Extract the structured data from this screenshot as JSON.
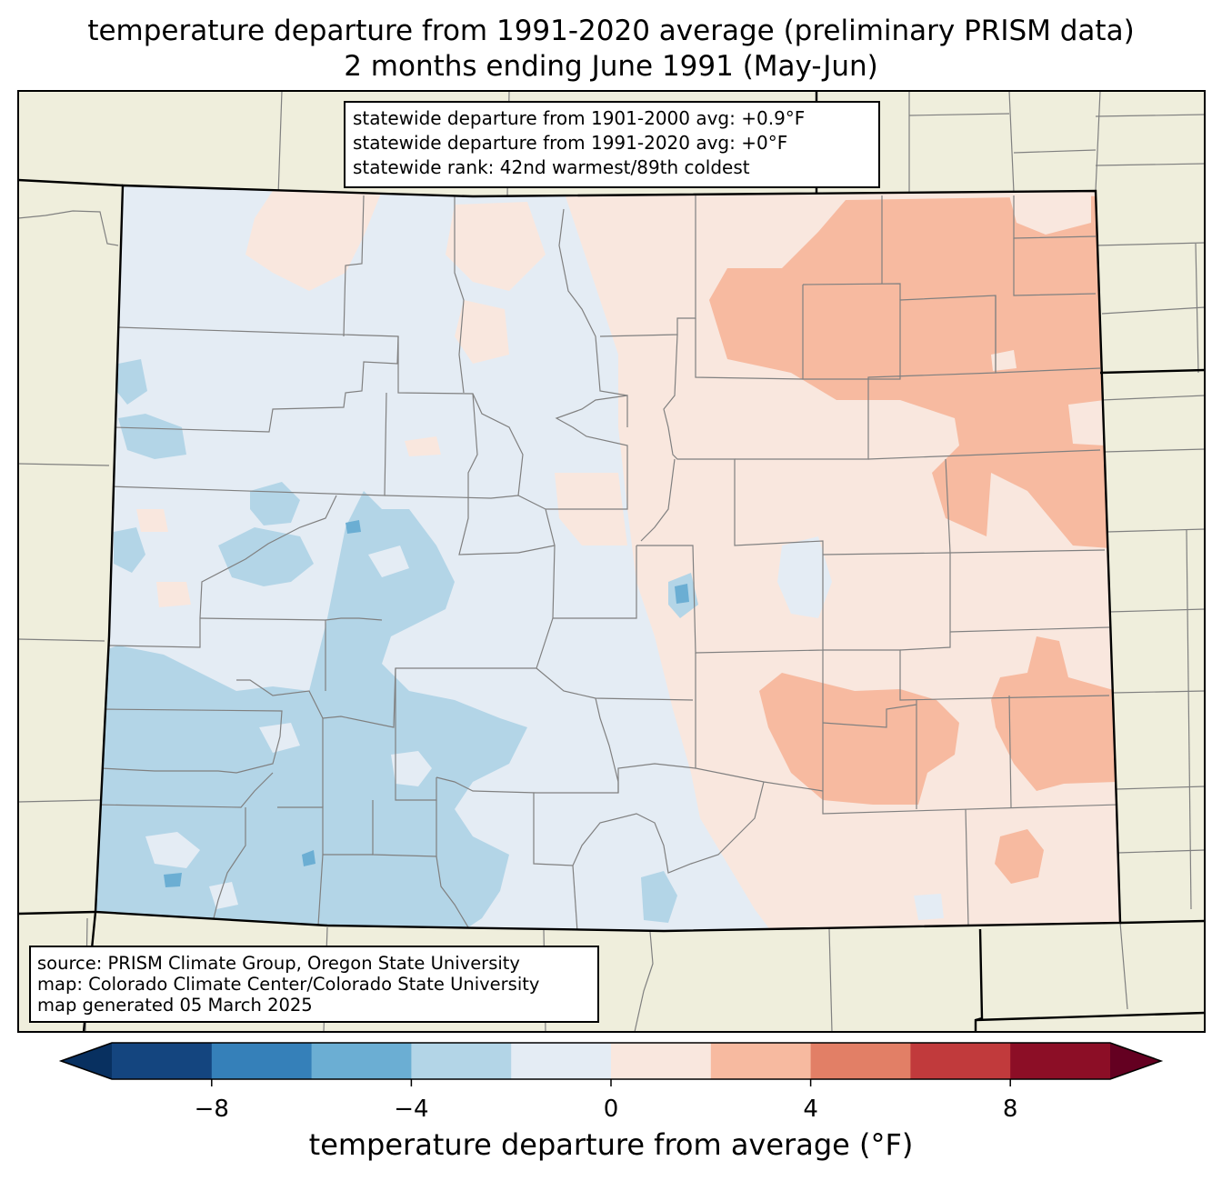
{
  "title_line1": "temperature departure from 1991-2020 average (preliminary PRISM data)",
  "title_line2": "2 months ending June 1991 (May-Jun)",
  "stats": {
    "line1": "statewide departure from 1901-2000 avg: +0.9°F",
    "line2": "statewide departure from 1991-2020 avg: +0°F",
    "line3": "statewide rank: 42nd warmest/89th coldest"
  },
  "source": {
    "line1": "source: PRISM Climate Group, Oregon State University",
    "line2": "map: Colorado Climate Center/Colorado State University",
    "line3": "map generated 05 March 2025"
  },
  "colorbar": {
    "label": "temperature departure from average (°F)",
    "range": [
      -10,
      10
    ],
    "step": 2,
    "colors": [
      "#083060",
      "#14457f",
      "#3580b9",
      "#6baed3",
      "#b3d5e7",
      "#e4ecf4",
      "#f9e7de",
      "#f7baa0",
      "#e27f66",
      "#c13a3c",
      "#8c0e26",
      "#640021"
    ],
    "tick_values": [
      -8,
      -4,
      0,
      4,
      8
    ],
    "tick_labels": [
      "−8",
      "−4",
      "0",
      "4",
      "8"
    ]
  },
  "map_colors": {
    "land": "#efeedc",
    "state_border": "#000000",
    "county_border": "#808080"
  }
}
